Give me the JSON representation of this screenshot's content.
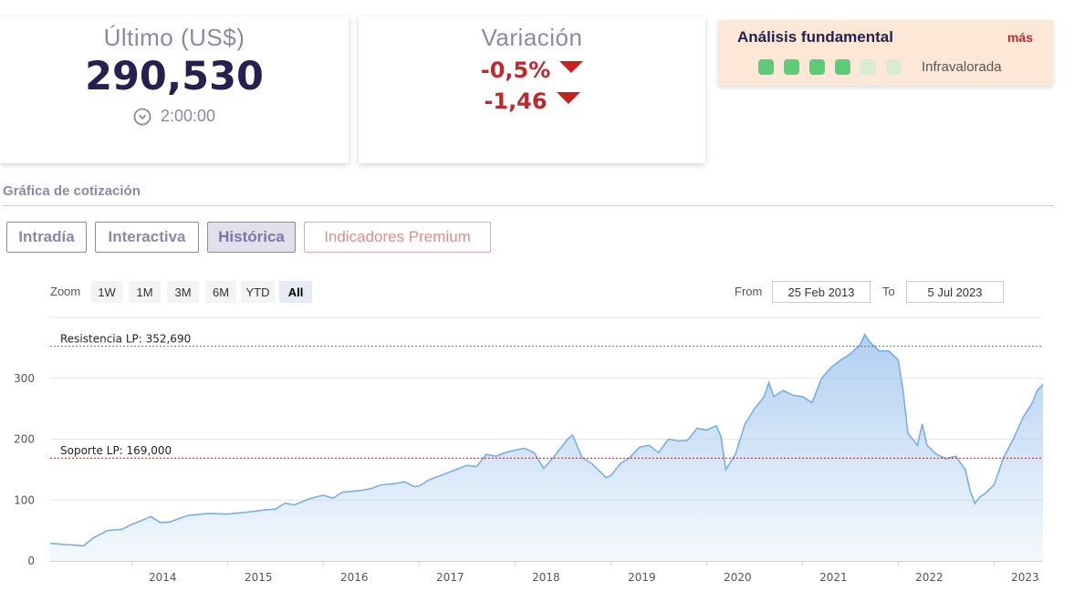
{
  "last": {
    "label": "Último (US$)",
    "price": "290,530",
    "time": "2:00:00"
  },
  "variation": {
    "label": "Variación",
    "percent": "-0,5%",
    "absolute": "-1,46"
  },
  "fundamental": {
    "title": "Análisis fundamental",
    "more": "más",
    "status": "Infravalorada",
    "score": 4,
    "max": 6,
    "on_color": "#5ccc78",
    "off_color": "#d8ecd2"
  },
  "section": {
    "title": "Gráfica de cotización"
  },
  "tabs": [
    {
      "label": "Intradía"
    },
    {
      "label": "Interactiva"
    },
    {
      "label": "Histórica"
    },
    {
      "label": "Indicadores Premium"
    }
  ],
  "zoom": {
    "label": "Zoom",
    "buttons": [
      "1W",
      "1M",
      "3M",
      "6M",
      "YTD",
      "All"
    ],
    "selected": "All"
  },
  "range": {
    "from_label": "From",
    "from": "25 Feb 2013",
    "to_label": "To",
    "to": "5 Jul 2023"
  },
  "chart_data": {
    "type": "area",
    "xlim": [
      2013.15,
      2023.51
    ],
    "ylim": [
      0,
      400
    ],
    "yticks": [
      0,
      100,
      200,
      300
    ],
    "xticks": [
      "2014",
      "2015",
      "2016",
      "2017",
      "2018",
      "2019",
      "2020",
      "2021",
      "2022",
      "2023"
    ],
    "resistance": {
      "label": "Resistencia LP: 352,690",
      "value": 352.69,
      "color": "#2e9a2e"
    },
    "support": {
      "label": "Soporte LP: 169,000",
      "value": 169.0,
      "color": "#b01c1c"
    },
    "series": [
      {
        "line_color": "#7aaee6",
        "fill_color": "#a9cbf0",
        "points": [
          [
            2013.15,
            29
          ],
          [
            2013.3,
            27
          ],
          [
            2013.5,
            25
          ],
          [
            2013.6,
            38
          ],
          [
            2013.75,
            50
          ],
          [
            2013.9,
            52
          ],
          [
            2014.0,
            60
          ],
          [
            2014.1,
            66
          ],
          [
            2014.2,
            73
          ],
          [
            2014.3,
            63
          ],
          [
            2014.4,
            64
          ],
          [
            2014.5,
            70
          ],
          [
            2014.6,
            75
          ],
          [
            2014.8,
            78
          ],
          [
            2015.0,
            77
          ],
          [
            2015.2,
            80
          ],
          [
            2015.4,
            84
          ],
          [
            2015.5,
            85
          ],
          [
            2015.6,
            95
          ],
          [
            2015.7,
            92
          ],
          [
            2015.85,
            102
          ],
          [
            2016.0,
            108
          ],
          [
            2016.1,
            103
          ],
          [
            2016.2,
            113
          ],
          [
            2016.4,
            116
          ],
          [
            2016.5,
            119
          ],
          [
            2016.6,
            125
          ],
          [
            2016.75,
            127
          ],
          [
            2016.85,
            130
          ],
          [
            2016.95,
            122
          ],
          [
            2017.0,
            123
          ],
          [
            2017.1,
            133
          ],
          [
            2017.3,
            145
          ],
          [
            2017.5,
            157
          ],
          [
            2017.6,
            155
          ],
          [
            2017.7,
            175
          ],
          [
            2017.8,
            172
          ],
          [
            2017.9,
            178
          ],
          [
            2018.0,
            182
          ],
          [
            2018.1,
            185
          ],
          [
            2018.2,
            178
          ],
          [
            2018.3,
            152
          ],
          [
            2018.4,
            170
          ],
          [
            2018.5,
            190
          ],
          [
            2018.55,
            200
          ],
          [
            2018.6,
            207
          ],
          [
            2018.7,
            170
          ],
          [
            2018.8,
            160
          ],
          [
            2018.9,
            145
          ],
          [
            2018.95,
            137
          ],
          [
            2019.0,
            140
          ],
          [
            2019.1,
            160
          ],
          [
            2019.2,
            170
          ],
          [
            2019.3,
            187
          ],
          [
            2019.4,
            190
          ],
          [
            2019.5,
            178
          ],
          [
            2019.6,
            200
          ],
          [
            2019.7,
            197
          ],
          [
            2019.8,
            198
          ],
          [
            2019.9,
            218
          ],
          [
            2020.0,
            215
          ],
          [
            2020.1,
            222
          ],
          [
            2020.15,
            205
          ],
          [
            2020.2,
            150
          ],
          [
            2020.3,
            175
          ],
          [
            2020.4,
            225
          ],
          [
            2020.5,
            250
          ],
          [
            2020.6,
            270
          ],
          [
            2020.65,
            293
          ],
          [
            2020.7,
            270
          ],
          [
            2020.8,
            280
          ],
          [
            2020.9,
            272
          ],
          [
            2021.0,
            270
          ],
          [
            2021.1,
            260
          ],
          [
            2021.2,
            300
          ],
          [
            2021.3,
            318
          ],
          [
            2021.4,
            330
          ],
          [
            2021.5,
            340
          ],
          [
            2021.6,
            355
          ],
          [
            2021.65,
            372
          ],
          [
            2021.7,
            360
          ],
          [
            2021.8,
            345
          ],
          [
            2021.9,
            345
          ],
          [
            2022.0,
            330
          ],
          [
            2022.05,
            280
          ],
          [
            2022.1,
            210
          ],
          [
            2022.2,
            190
          ],
          [
            2022.25,
            225
          ],
          [
            2022.3,
            190
          ],
          [
            2022.4,
            175
          ],
          [
            2022.5,
            168
          ],
          [
            2022.6,
            172
          ],
          [
            2022.7,
            150
          ],
          [
            2022.75,
            115
          ],
          [
            2022.8,
            95
          ],
          [
            2022.85,
            105
          ],
          [
            2022.9,
            110
          ],
          [
            2023.0,
            125
          ],
          [
            2023.1,
            170
          ],
          [
            2023.2,
            200
          ],
          [
            2023.3,
            235
          ],
          [
            2023.4,
            260
          ],
          [
            2023.45,
            280
          ],
          [
            2023.51,
            290
          ]
        ]
      }
    ]
  }
}
